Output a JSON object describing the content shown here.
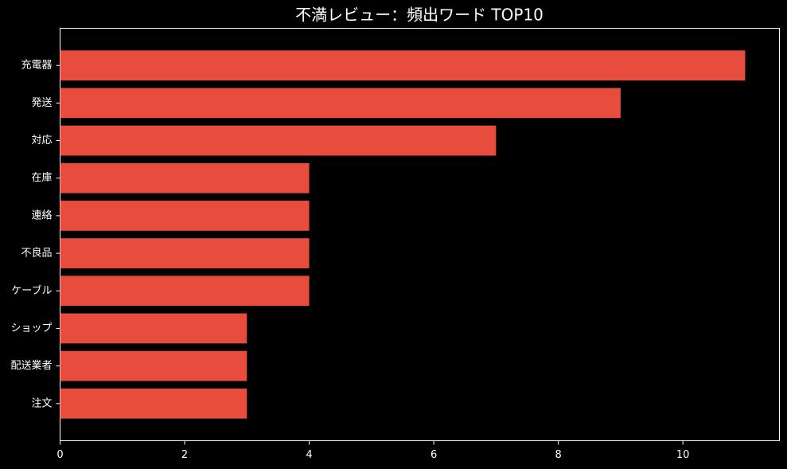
{
  "chart_data": {
    "type": "barh",
    "title": "不満レビュー：頻出ワード TOP10",
    "categories": [
      "充電器",
      "発送",
      "対応",
      "在庫",
      "連絡",
      "不良品",
      "ケーブル",
      "ショップ",
      "配送業者",
      "注文"
    ],
    "values": [
      11,
      9,
      7,
      4,
      4,
      4,
      4,
      3,
      3,
      3
    ],
    "color": "#e74c3c",
    "xlim": [
      0,
      11.55
    ],
    "xticks": [
      0,
      2,
      4,
      6,
      8,
      10
    ]
  }
}
